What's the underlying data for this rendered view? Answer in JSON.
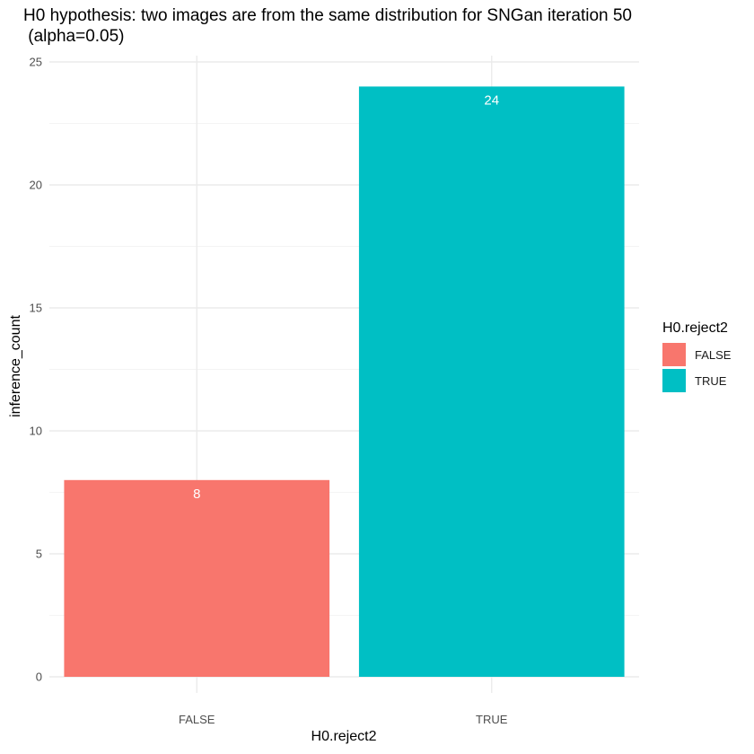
{
  "chart_data": {
    "type": "bar",
    "title": "H0 hypothesis: two images are from the same distribution for SNGan iteration 50\n (alpha=0.05)",
    "xlabel": "H0.reject2",
    "ylabel": "inference_count",
    "categories": [
      "FALSE",
      "TRUE"
    ],
    "values": [
      8,
      24
    ],
    "data_labels": [
      "8",
      "24"
    ],
    "colors": [
      "#F8766D",
      "#00BFC4"
    ],
    "ylim": [
      0,
      25
    ],
    "yticks": [
      0,
      5,
      10,
      15,
      20,
      25
    ],
    "grid": true,
    "legend": {
      "title": "H0.reject2",
      "position": "right",
      "entries": [
        {
          "label": "FALSE",
          "color": "#F8766D"
        },
        {
          "label": "TRUE",
          "color": "#00BFC4"
        }
      ]
    }
  }
}
